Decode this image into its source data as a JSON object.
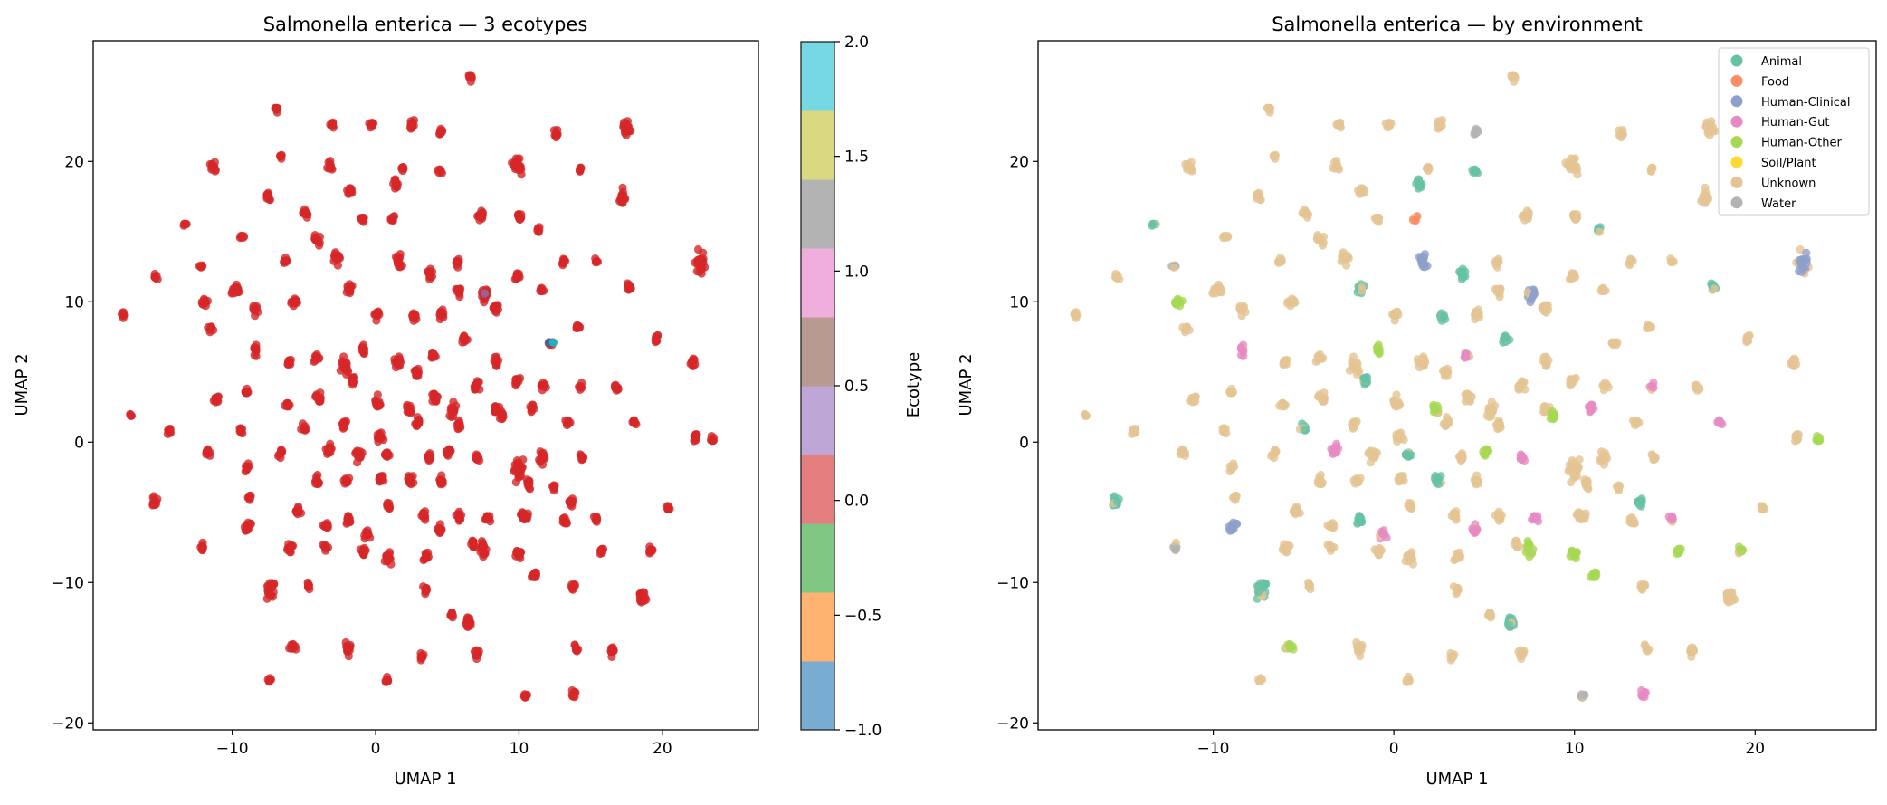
{
  "chart_data": [
    {
      "type": "scatter",
      "title": "Salmonella enterica — 3 ecotypes",
      "xlabel": "UMAP 1",
      "ylabel": "UMAP 2",
      "xlim": [
        -19.7,
        26.7
      ],
      "ylim": [
        -20.5,
        28.6
      ],
      "xticks": [
        -10,
        0,
        10,
        20
      ],
      "yticks": [
        -20,
        -10,
        0,
        10,
        20
      ],
      "grid": false,
      "point_color_default": "#d62728",
      "default_ecotype": 0,
      "special_points": [
        {
          "x": 7.6,
          "y": 10.6,
          "ecotype": 0.3,
          "color": "#8c6bb1"
        },
        {
          "x": 12.1,
          "y": 7.1,
          "ecotype": -1,
          "color": "#1f77b4"
        },
        {
          "x": 12.4,
          "y": 7.1,
          "ecotype": 2,
          "color": "#17becf"
        }
      ],
      "colorbar": {
        "label": "Ecotype",
        "range": [
          -1.0,
          2.0
        ],
        "ticks": [
          "-1.0",
          "-0.5",
          "0.0",
          "0.5",
          "1.0",
          "1.5",
          "2.0"
        ],
        "colors": [
          "#78acd1",
          "#feb370",
          "#81c784",
          "#e57f7f",
          "#bea6d6",
          "#b89a90",
          "#efaedb",
          "#b3b3b3",
          "#d8d980",
          "#75d8e3"
        ]
      }
    },
    {
      "type": "scatter",
      "title": "Salmonella enterica — by environment",
      "xlabel": "UMAP 1",
      "ylabel": "UMAP 2",
      "xlim": [
        -19.7,
        26.7
      ],
      "ylim": [
        -20.5,
        28.6
      ],
      "xticks": [
        -10,
        0,
        10,
        20
      ],
      "yticks": [
        -20,
        -10,
        0,
        10,
        20
      ],
      "grid": false,
      "legend_position": "top-right",
      "legend": [
        {
          "label": "Animal",
          "color": "#66c2a5"
        },
        {
          "label": "Food",
          "color": "#fc8d62"
        },
        {
          "label": "Human-Clinical",
          "color": "#8da0cb"
        },
        {
          "label": "Human-Gut",
          "color": "#e78ac3"
        },
        {
          "label": "Human-Other",
          "color": "#a6d854"
        },
        {
          "label": "Soil/Plant",
          "color": "#ffd92f"
        },
        {
          "label": "Unknown",
          "color": "#e5c494"
        },
        {
          "label": "Water",
          "color": "#b3b3b3"
        }
      ]
    }
  ],
  "clusters_columns": [
    "umap1",
    "umap2",
    "size",
    "environment_index"
  ],
  "clusters": [
    [
      6.6,
      26,
      2,
      6
    ],
    [
      -6.9,
      23.7,
      2,
      6
    ],
    [
      -3,
      22.6,
      2,
      6
    ],
    [
      -0.3,
      22.6,
      2,
      6
    ],
    [
      2.5,
      22.6,
      3,
      6
    ],
    [
      4.6,
      22.1,
      2,
      7
    ],
    [
      12.6,
      22,
      2,
      6
    ],
    [
      17.4,
      22.4,
      6,
      6
    ],
    [
      -11.3,
      19.7,
      3,
      6
    ],
    [
      -6.6,
      20.4,
      1,
      6
    ],
    [
      -3.2,
      19.7,
      2,
      6
    ],
    [
      1.9,
      19.5,
      2,
      6
    ],
    [
      4.5,
      19.3,
      2,
      0
    ],
    [
      9.9,
      19.7,
      7,
      6
    ],
    [
      14.3,
      19.5,
      1,
      6
    ],
    [
      17.2,
      17.4,
      5,
      6
    ],
    [
      -13.3,
      15.5,
      1,
      0
    ],
    [
      -9.3,
      14.7,
      2,
      6
    ],
    [
      -7.5,
      17.5,
      3,
      6
    ],
    [
      -1.8,
      17.9,
      3,
      6
    ],
    [
      1.4,
      18.4,
      3,
      0
    ],
    [
      -4.9,
      16.3,
      3,
      6
    ],
    [
      -0.9,
      15.9,
      2,
      6
    ],
    [
      1.2,
      15.9,
      2,
      1
    ],
    [
      -4.1,
      14.4,
      4,
      6
    ],
    [
      7.3,
      16.1,
      4,
      6
    ],
    [
      10,
      16.1,
      3,
      6
    ],
    [
      11.3,
      15.1,
      1,
      0
    ],
    [
      13.1,
      12.9,
      2,
      6
    ],
    [
      15.4,
      12.8,
      1,
      6
    ],
    [
      22.6,
      12.7,
      8,
      2
    ],
    [
      -15.3,
      11.8,
      2,
      6
    ],
    [
      -12.2,
      12.5,
      1,
      7
    ],
    [
      -6.3,
      12.9,
      2,
      6
    ],
    [
      -2.7,
      13.1,
      4,
      6
    ],
    [
      1.6,
      12.9,
      5,
      2
    ],
    [
      3.8,
      12,
      3,
      0
    ],
    [
      5.7,
      12.8,
      2,
      6
    ],
    [
      7.6,
      10.5,
      4,
      2
    ],
    [
      9.9,
      11.8,
      3,
      6
    ],
    [
      11.6,
      10.8,
      2,
      6
    ],
    [
      -17.6,
      9.1,
      2,
      6
    ],
    [
      -11.9,
      10,
      3,
      4
    ],
    [
      -9.8,
      10.8,
      4,
      6
    ],
    [
      -8.4,
      9.5,
      3,
      6
    ],
    [
      -5.7,
      10,
      3,
      6
    ],
    [
      -1.8,
      11,
      4,
      0
    ],
    [
      0.1,
      9.1,
      3,
      6
    ],
    [
      2.7,
      8.9,
      3,
      0
    ],
    [
      4.6,
      9.1,
      3,
      6
    ],
    [
      5.8,
      10.8,
      3,
      6
    ],
    [
      8.4,
      9.5,
      4,
      6
    ],
    [
      12.2,
      7,
      3,
      6
    ],
    [
      14.1,
      8.3,
      2,
      6
    ],
    [
      17.7,
      11,
      3,
      0
    ],
    [
      19.6,
      7.4,
      2,
      6
    ],
    [
      22.1,
      5.7,
      3,
      6
    ],
    [
      -11.5,
      8.1,
      2,
      6
    ],
    [
      -8.4,
      6.6,
      3,
      3
    ],
    [
      -6,
      5.7,
      3,
      6
    ],
    [
      -4.1,
      6,
      3,
      6
    ],
    [
      -2.2,
      5.4,
      6,
      6
    ],
    [
      -0.9,
      6.6,
      3,
      4
    ],
    [
      1.6,
      5.7,
      5,
      6
    ],
    [
      2.9,
      4.9,
      4,
      6
    ],
    [
      4,
      6.1,
      3,
      3
    ],
    [
      6.2,
      7.4,
      3,
      0
    ],
    [
      8.4,
      5.7,
      3,
      6
    ],
    [
      7.1,
      4,
      4,
      6
    ],
    [
      9.9,
      4.4,
      3,
      6
    ],
    [
      11.7,
      4,
      2,
      6
    ],
    [
      14.3,
      4,
      2,
      3
    ],
    [
      16.8,
      4,
      2,
      6
    ],
    [
      -11.1,
      3,
      3,
      6
    ],
    [
      -9,
      3.6,
      2,
      6
    ],
    [
      -6.2,
      2.7,
      3,
      6
    ],
    [
      -3.9,
      3.1,
      4,
      6
    ],
    [
      -1.6,
      4.4,
      4,
      0
    ],
    [
      0.1,
      2.7,
      4,
      6
    ],
    [
      2.3,
      2.3,
      4,
      4
    ],
    [
      4.1,
      3.1,
      4,
      6
    ],
    [
      5.4,
      2.3,
      4,
      6
    ],
    [
      8.4,
      2.3,
      3,
      6
    ],
    [
      10.9,
      2.4,
      3,
      3
    ],
    [
      -17.1,
      1.9,
      1,
      6
    ],
    [
      -14.4,
      0.8,
      2,
      6
    ],
    [
      -9.4,
      0.8,
      2,
      6
    ],
    [
      -5,
      1,
      2,
      0
    ],
    [
      -2.2,
      1.4,
      3,
      6
    ],
    [
      0.3,
      0.4,
      4,
      6
    ],
    [
      2.9,
      1.4,
      3,
      6
    ],
    [
      5.8,
      1.3,
      3,
      6
    ],
    [
      8.8,
      1.9,
      3,
      4
    ],
    [
      13.4,
      1.4,
      2,
      6
    ],
    [
      18,
      1.4,
      2,
      3
    ],
    [
      22.3,
      0.4,
      3,
      6
    ],
    [
      23.5,
      0.2,
      2,
      4
    ],
    [
      -11.7,
      -0.7,
      2,
      6
    ],
    [
      -6.6,
      -0.8,
      3,
      6
    ],
    [
      -3.3,
      -0.5,
      4,
      3
    ],
    [
      -1.2,
      -0.9,
      4,
      6
    ],
    [
      0.8,
      -0.9,
      4,
      0
    ],
    [
      3.7,
      -1.1,
      3,
      6
    ],
    [
      5.1,
      -0.7,
      3,
      4
    ],
    [
      7.1,
      -1.1,
      3,
      3
    ],
    [
      10,
      -1.8,
      9,
      6
    ],
    [
      11.6,
      -1.1,
      4,
      6
    ],
    [
      14.4,
      -1.1,
      2,
      6
    ],
    [
      -9,
      -1.7,
      2,
      6
    ],
    [
      -4.1,
      -2.8,
      3,
      6
    ],
    [
      -2,
      -2.8,
      3,
      6
    ],
    [
      0.4,
      -2.6,
      3,
      6
    ],
    [
      2.4,
      -2.6,
      3,
      0
    ],
    [
      4.6,
      -2.8,
      3,
      6
    ],
    [
      10.7,
      -3,
      3,
      6
    ],
    [
      12.4,
      -3.2,
      2,
      6
    ],
    [
      -15.4,
      -4.3,
      4,
      0
    ],
    [
      -8.8,
      -3.9,
      2,
      6
    ],
    [
      -5.4,
      -4.9,
      3,
      6
    ],
    [
      -1.9,
      -5.5,
      3,
      0
    ],
    [
      0.9,
      -4.5,
      2,
      6
    ],
    [
      3.3,
      -5.2,
      3,
      6
    ],
    [
      5.8,
      -5.2,
      3,
      6
    ],
    [
      7.8,
      -5.5,
      3,
      3
    ],
    [
      10.3,
      -5.2,
      3,
      6
    ],
    [
      13.6,
      -4.3,
      3,
      0
    ],
    [
      20.4,
      -4.7,
      2,
      6
    ],
    [
      -8.9,
      -6,
      3,
      2
    ],
    [
      -3.5,
      -6,
      3,
      6
    ],
    [
      -0.6,
      -6.6,
      3,
      3
    ],
    [
      4.5,
      -6.2,
      3,
      3
    ],
    [
      6.8,
      -7.2,
      3,
      6
    ],
    [
      7.5,
      -7.9,
      3,
      4
    ],
    [
      10.5,
      -5.4,
      3,
      6
    ],
    [
      13.2,
      -5.6,
      2,
      6
    ],
    [
      15.4,
      -5.5,
      2,
      3
    ],
    [
      -12.1,
      -7.5,
      2,
      7
    ],
    [
      -6,
      -7.5,
      3,
      6
    ],
    [
      -3.5,
      -7.5,
      2,
      6
    ],
    [
      -0.9,
      -7.7,
      3,
      6
    ],
    [
      0.9,
      -8.3,
      4,
      6
    ],
    [
      3.5,
      -8.1,
      3,
      6
    ],
    [
      7.5,
      -7.5,
      3,
      4
    ],
    [
      10,
      -7.9,
      4,
      4
    ],
    [
      15.8,
      -7.7,
      2,
      4
    ],
    [
      19.2,
      -7.7,
      2,
      4
    ],
    [
      -7.4,
      -10.5,
      6,
      0
    ],
    [
      -4.7,
      -10.3,
      2,
      6
    ],
    [
      3.5,
      -10.5,
      2,
      6
    ],
    [
      11.1,
      -9.4,
      3,
      4
    ],
    [
      13.8,
      -10.3,
      2,
      6
    ],
    [
      18.6,
      -11.1,
      5,
      6
    ],
    [
      5.3,
      -12.3,
      2,
      6
    ],
    [
      6.5,
      -12.8,
      5,
      0
    ],
    [
      -5.8,
      -14.5,
      3,
      4
    ],
    [
      -1.9,
      -14.7,
      4,
      6
    ],
    [
      3.2,
      -15.3,
      2,
      6
    ],
    [
      7.1,
      -15.1,
      3,
      6
    ],
    [
      14,
      -14.7,
      2,
      6
    ],
    [
      16.5,
      -14.9,
      3,
      6
    ],
    [
      -7.4,
      -16.9,
      1,
      6
    ],
    [
      0.8,
      -17,
      2,
      6
    ],
    [
      10.5,
      -18.1,
      2,
      7
    ],
    [
      13.8,
      -18,
      2,
      3
    ]
  ]
}
